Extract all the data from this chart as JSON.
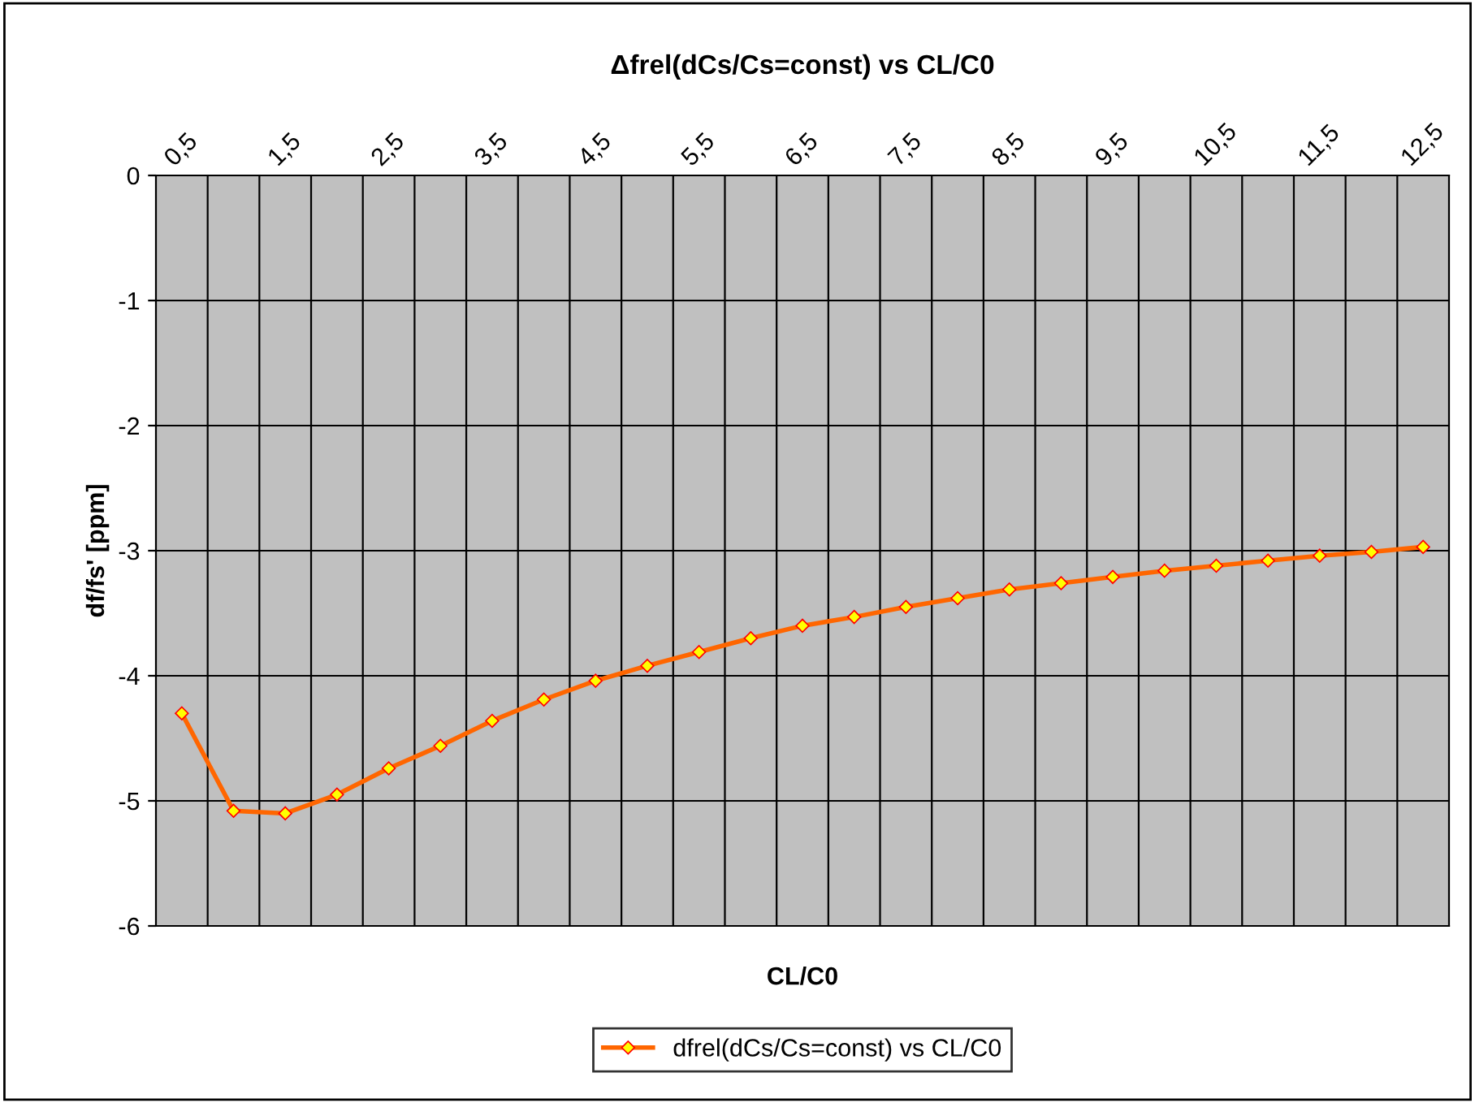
{
  "chart_data": {
    "type": "line",
    "title": "Δfrel(dCs/Cs=const) vs CL/C0",
    "xlabel": "CL/C0",
    "ylabel": "df/fs' [ppm]",
    "categories": [
      "0,5",
      null,
      "1,5",
      null,
      "2,5",
      null,
      "3,5",
      null,
      "4,5",
      null,
      "5,5",
      null,
      "6,5",
      null,
      "7,5",
      null,
      "8,5",
      null,
      "9,5",
      null,
      "10,5",
      null,
      "11,5",
      null,
      "12,5"
    ],
    "series": [
      {
        "name": "dfrel(dCs/Cs=const) vs CL/C0",
        "color": "#ff6600",
        "values": [
          -4.3,
          -5.08,
          -5.1,
          -4.95,
          -4.74,
          -4.56,
          -4.36,
          -4.19,
          -4.04,
          -3.92,
          -3.81,
          -3.7,
          -3.6,
          -3.53,
          -3.45,
          -3.38,
          -3.31,
          -3.26,
          -3.21,
          -3.16,
          -3.12,
          -3.08,
          -3.04,
          -3.01,
          -2.97
        ]
      }
    ],
    "ylim": [
      -6,
      0
    ],
    "yticks": [
      -6,
      -5,
      -4,
      -3,
      -2,
      -1,
      0
    ],
    "grid": true,
    "legend": "bottom",
    "marker": "diamond",
    "line_style": "solid"
  }
}
